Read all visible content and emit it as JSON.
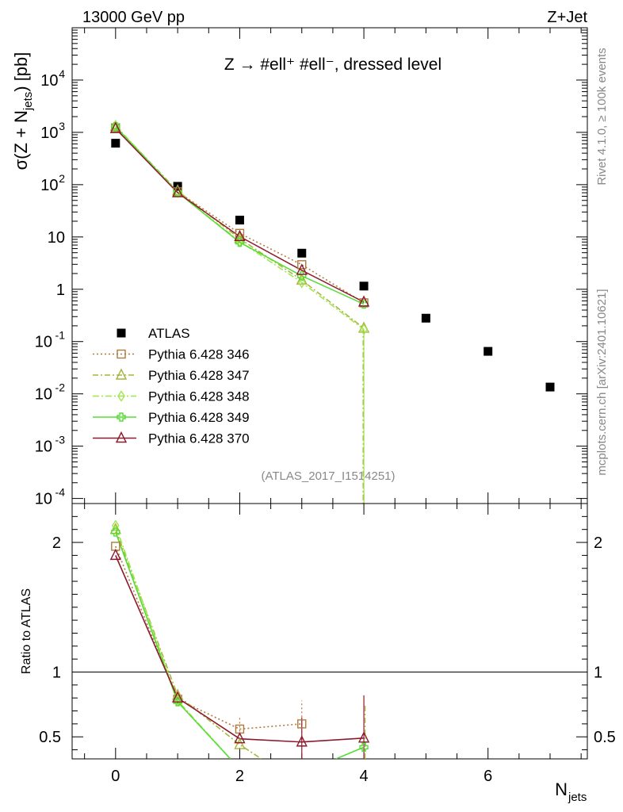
{
  "header": {
    "left_label": "13000 GeV pp",
    "right_label": "Z+Jet"
  },
  "side_texts": {
    "rivet": "Rivet 4.1.0, ≥ 100k events",
    "mcplots": "mcplots.cern.ch [arXiv:2401.10621]"
  },
  "chart_data": [
    {
      "panel": "main",
      "type": "scatter",
      "title": "Z → #ell⁺ #ell⁻, dressed level",
      "analysis_label": "(ATLAS_2017_I1514251)",
      "ylabel_main": "σ(Z + N",
      "ylabel_sub": "jets",
      "ylabel_tail": ") [pb]",
      "xlabel_main": "N",
      "xlabel_sub": "jets",
      "yscale": "log",
      "xlim": [
        -0.7,
        7.6
      ],
      "ylim": [
        8e-05,
        100000
      ],
      "x_ticks": [
        0,
        2,
        4,
        6
      ],
      "y_ticks": [
        {
          "value": 0.0001,
          "base": "10",
          "exp": "-4"
        },
        {
          "value": 0.001,
          "base": "10",
          "exp": "-3"
        },
        {
          "value": 0.01,
          "base": "10",
          "exp": "-2"
        },
        {
          "value": 0.1,
          "base": "10",
          "exp": "-1"
        },
        {
          "value": 1,
          "base": "1",
          "exp": ""
        },
        {
          "value": 10,
          "base": "10",
          "exp": ""
        },
        {
          "value": 100,
          "base": "10",
          "exp": "2"
        },
        {
          "value": 1000,
          "base": "10",
          "exp": "3"
        },
        {
          "value": 10000,
          "base": "10",
          "exp": "4"
        }
      ],
      "series": [
        {
          "name": "ATLAS",
          "color": "#000000",
          "marker": "square-filled",
          "dash": "none",
          "x": [
            0,
            1,
            2,
            3,
            4,
            5,
            6,
            7
          ],
          "y": [
            620,
            93,
            21,
            4.9,
            1.15,
            0.28,
            0.065,
            0.0135
          ]
        },
        {
          "name": "Pythia 6.428 346",
          "color": "#b07a3c",
          "marker": "square-open",
          "dash": "2,3",
          "x": [
            0,
            1,
            2,
            3,
            4
          ],
          "y": [
            1220,
            73,
            11.7,
            2.95,
            0.55
          ]
        },
        {
          "name": "Pythia 6.428 347",
          "color": "#a8b43c",
          "marker": "triangle-open",
          "dash": "7,3,2,3",
          "x": [
            0,
            1,
            2,
            3,
            4
          ],
          "y": [
            1300,
            76,
            9.3,
            1.5,
            0.18
          ]
        },
        {
          "name": "Pythia 6.428 348",
          "color": "#9ee64b",
          "marker": "diamond-open",
          "dash": "8,3,2,3",
          "x": [
            0,
            1,
            2,
            3,
            4
          ],
          "y": [
            1340,
            72,
            8.2,
            1.35,
            0.17
          ]
        },
        {
          "name": "Pythia 6.428 349",
          "color": "#55dd33",
          "marker": "cross",
          "dash": "none",
          "x": [
            0,
            1,
            2,
            3,
            4
          ],
          "y": [
            1290,
            71,
            7.9,
            1.8,
            0.52
          ]
        },
        {
          "name": "Pythia 6.428 370",
          "color": "#8c1a2e",
          "marker": "triangle-open",
          "dash": "none",
          "x": [
            0,
            1,
            2,
            3,
            4
          ],
          "y": [
            1180,
            70,
            10.2,
            2.3,
            0.57
          ]
        }
      ]
    },
    {
      "panel": "ratio",
      "type": "line",
      "ylabel": "Ratio to ATLAS",
      "ylim": [
        0.33,
        2.3
      ],
      "y_ticks": [
        0.5,
        1,
        2
      ],
      "y_tick_labels": [
        "0.5",
        "1",
        "2"
      ],
      "reference_line": 1,
      "series": [
        {
          "name": "Pythia 6.428 346",
          "x": [
            0,
            1,
            2,
            3
          ],
          "y": [
            1.97,
            0.79,
            0.56,
            0.6
          ]
        },
        {
          "name": "Pythia 6.428 347",
          "x": [
            0,
            1,
            2,
            2.35
          ],
          "y": [
            2.1,
            0.82,
            0.44,
            0.33
          ]
        },
        {
          "name": "Pythia 6.428 348",
          "x": [
            0,
            1,
            1.85
          ],
          "y": [
            2.13,
            0.78,
            0.33
          ]
        },
        {
          "name": "Pythia 6.428 349",
          "x": [
            0,
            1,
            1.85
          ],
          "y": [
            2.08,
            0.77,
            0.33
          ]
        },
        {
          "name": "Pythia 6.428 349 tail",
          "x": [
            3.55,
            4
          ],
          "y": [
            0.33,
            0.42
          ]
        },
        {
          "name": "Pythia 6.428 370",
          "x": [
            0,
            1,
            2,
            3,
            4
          ],
          "y": [
            1.9,
            0.8,
            0.485,
            0.46,
            0.49
          ]
        }
      ]
    }
  ]
}
